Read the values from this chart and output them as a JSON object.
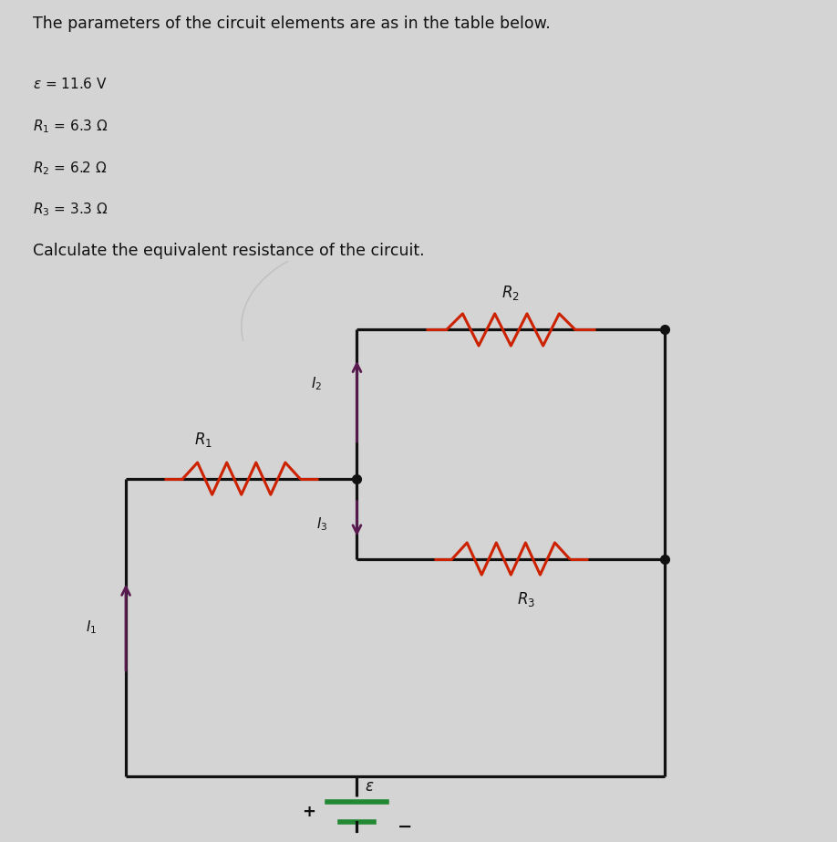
{
  "title_text": "The parameters of the circuit elements are as in the table below.",
  "params_raw": [
    "ε = 11.6 V",
    "R₁ = 6.3 Ω",
    "R₂ = 6.2 Ω",
    "R₃ = 3.3 Ω"
  ],
  "subtitle": "Calculate the equivalent resistance of the circuit.",
  "bg_color": "#cccccc",
  "page_bg": "#d4d4d4",
  "wire_color": "#111111",
  "resistor_color": "#cc2200",
  "arrow_color": "#5a1a50",
  "battery_color": "#228833",
  "node_color": "#111111",
  "text_color": "#111111",
  "title_fontsize": 12.5,
  "param_fontsize": 11,
  "subtitle_fontsize": 12.5,
  "circuit_label_fontsize": 12,
  "arrow_label_fontsize": 11
}
